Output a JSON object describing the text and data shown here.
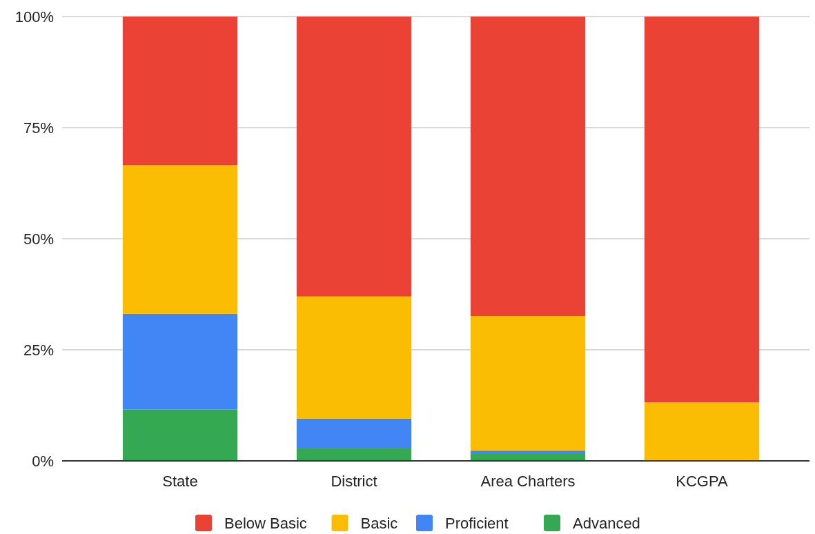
{
  "chart_data": {
    "type": "bar",
    "stacked": true,
    "categories": [
      "State",
      "District",
      "Area Charters",
      "KCGPA"
    ],
    "series": [
      {
        "name": "Advanced",
        "color": "#34a853",
        "values": [
          11.6,
          2.8,
          1.7,
          0
        ]
      },
      {
        "name": "Proficient",
        "color": "#4285f4",
        "values": [
          21.5,
          6.7,
          0.6,
          0
        ]
      },
      {
        "name": "Basic",
        "color": "#fbbc04",
        "values": [
          33.5,
          27.5,
          30.3,
          13.2
        ]
      },
      {
        "name": "Below Basic",
        "color": "#ea4335",
        "values": [
          33.4,
          63.0,
          67.4,
          86.8
        ]
      }
    ],
    "ylim": [
      0,
      100
    ],
    "yticks": [
      {
        "value": 0,
        "label": "0%"
      },
      {
        "value": 25,
        "label": "25%"
      },
      {
        "value": 50,
        "label": "50%"
      },
      {
        "value": 75,
        "label": "75%"
      },
      {
        "value": 100,
        "label": "100%"
      }
    ],
    "grid": "y",
    "legend": "bottom"
  }
}
